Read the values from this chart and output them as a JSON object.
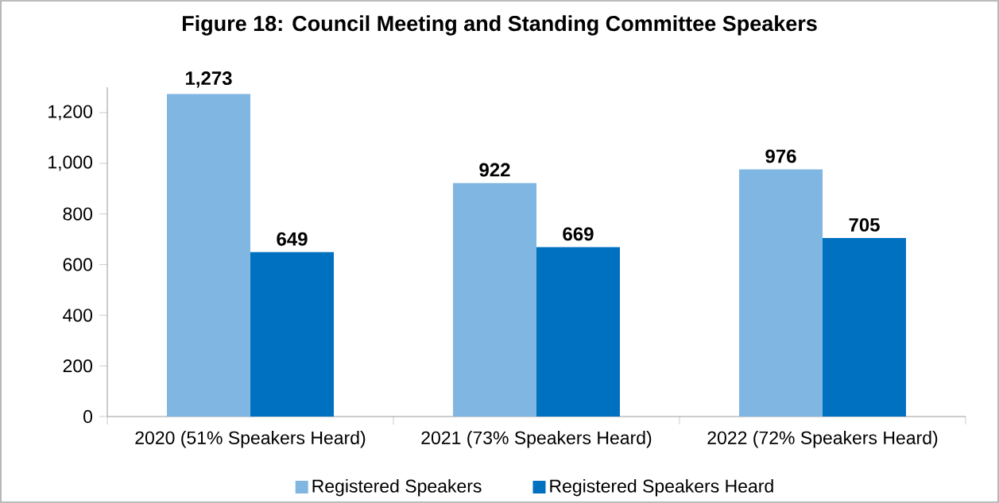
{
  "chart_data": {
    "type": "bar",
    "title": "Figure 18: Council Meeting and Standing Committee Speakers",
    "categories": [
      "2020 (51% Speakers Heard)",
      "2021 (73% Speakers Heard)",
      "2022 (72% Speakers Heard)"
    ],
    "series": [
      {
        "name": "Registered Speakers",
        "color": "#7fb6e2",
        "values": [
          1273,
          922,
          976
        ],
        "value_labels": [
          "1,273",
          "922",
          "976"
        ]
      },
      {
        "name": "Registered Speakers Heard",
        "color": "#0070c0",
        "values": [
          649,
          669,
          705
        ],
        "value_labels": [
          "649",
          "669",
          "705"
        ]
      }
    ],
    "ylim": [
      0,
      1300
    ],
    "yticks": [
      0,
      200,
      400,
      600,
      800,
      {
        "value": 1000,
        "label": "1,000"
      },
      {
        "value": 1200,
        "label": "1,200"
      }
    ],
    "legend": "bottom"
  }
}
